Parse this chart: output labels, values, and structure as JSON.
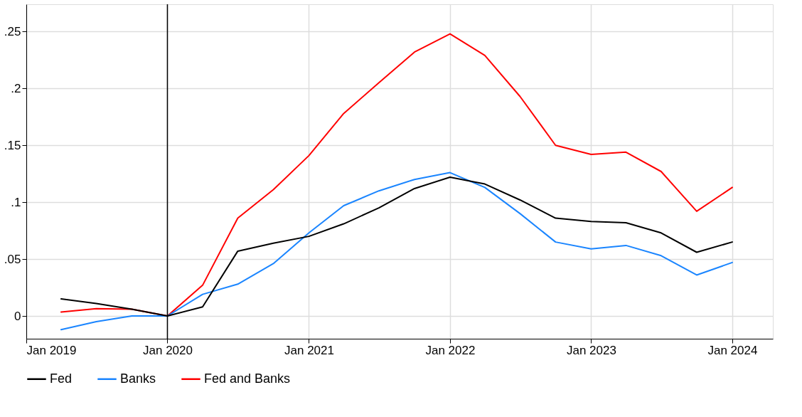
{
  "chart_data": {
    "type": "line",
    "x": [
      "2019-04",
      "2019-07",
      "2019-10",
      "2020-01",
      "2020-04",
      "2020-07",
      "2020-10",
      "2021-01",
      "2021-04",
      "2021-07",
      "2021-10",
      "2022-01",
      "2022-04",
      "2022-07",
      "2022-10",
      "2023-01",
      "2023-04",
      "2023-07",
      "2023-10",
      "2024-01"
    ],
    "series": [
      {
        "name": "Fed",
        "color": "#000000",
        "values": [
          0.015,
          0.011,
          0.006,
          0,
          0.008,
          0.057,
          0.064,
          0.07,
          0.081,
          0.095,
          0.112,
          0.122,
          0.116,
          0.102,
          0.086,
          0.083,
          0.082,
          0.073,
          0.056,
          0.065
        ]
      },
      {
        "name": "Banks",
        "color": "#1a85ff",
        "values": [
          -0.012,
          -0.005,
          0,
          0,
          0.019,
          0.028,
          0.046,
          0.073,
          0.097,
          0.11,
          0.12,
          0.126,
          0.113,
          0.09,
          0.065,
          0.059,
          0.062,
          0.053,
          0.036,
          0.047
        ]
      },
      {
        "name": "Fed and Banks",
        "color": "#ff0000",
        "values": [
          0.0035,
          0.0065,
          0.006,
          0,
          0.027,
          0.086,
          0.111,
          0.141,
          0.178,
          0.205,
          0.232,
          0.248,
          0.229,
          0.193,
          0.15,
          0.142,
          0.144,
          0.127,
          0.092,
          0.113
        ]
      }
    ],
    "xlim": [
      "2019-01",
      "2024-04-15"
    ],
    "xticks": [
      {
        "value": "2019-01",
        "label": "Jan 2019"
      },
      {
        "value": "2020-01",
        "label": "Jan 2020"
      },
      {
        "value": "2021-01",
        "label": "Jan 2021"
      },
      {
        "value": "2022-01",
        "label": "Jan 2022"
      },
      {
        "value": "2023-01",
        "label": "Jan 2023"
      },
      {
        "value": "2024-01",
        "label": "Jan 2024"
      }
    ],
    "ylim": [
      -0.02,
      0.274
    ],
    "yticks": [
      {
        "value": 0,
        "label": "0"
      },
      {
        "value": 0.05,
        "label": ".05"
      },
      {
        "value": 0.1,
        "label": ".1"
      },
      {
        "value": 0.15,
        "label": ".15"
      },
      {
        "value": 0.2,
        "label": ".2"
      },
      {
        "value": 0.25,
        "label": ".25"
      }
    ],
    "ref_lines": [
      {
        "axis": "x",
        "value": "2020-01",
        "color": "#000000"
      }
    ],
    "grid": true,
    "legend": "bottom",
    "marker": "none",
    "line_style": "solid"
  }
}
